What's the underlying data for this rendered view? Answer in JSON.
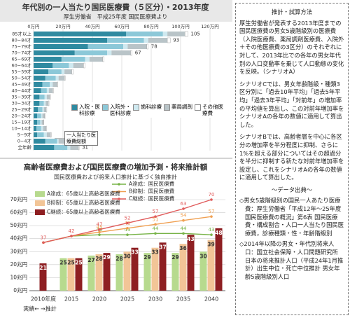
{
  "chart_data": [
    {
      "type": "hbar_stacked",
      "title": "年代別の一人当たり国民医療費（５区分）・2013年度",
      "subtitle": "厚生労働省　平成25年度 国民医療費より",
      "categories": [
        "85才以上",
        "80−84才",
        "75−79才",
        "70−74才",
        "65−69才",
        "60−64才",
        "55−59才",
        "50−54才",
        "45−49才",
        "40−44才",
        "35−39才",
        "30−34才",
        "25−29才",
        "20−24才",
        "15−19才",
        "10−14才",
        "5−9才",
        "0−4才",
        "全年齢"
      ],
      "series": [
        {
          "name": "入院・医科診療",
          "color": "#2f8aa0",
          "values": [
            63,
            50,
            37,
            28,
            19,
            13,
            10,
            8,
            6,
            5,
            4,
            4,
            3,
            2.5,
            2.5,
            2,
            2.5,
            8,
            14
          ]
        },
        {
          "name": "入院外・医科診療",
          "color": "#8cc8d8",
          "values": [
            25,
            25,
            24,
            22,
            16,
            11,
            9,
            7,
            5,
            4,
            3.5,
            3,
            3,
            2.5,
            2,
            3,
            4.5,
            8,
            9
          ]
        },
        {
          "name": "歯科診療",
          "color": "#cfe9f0",
          "values": [
            3,
            3,
            3,
            3,
            3,
            3,
            2,
            2,
            2,
            1.5,
            1.5,
            1.2,
            1,
            1,
            1,
            1.5,
            2,
            1,
            2
          ]
        },
        {
          "name": "薬局調剤",
          "color": "#b9c4c8",
          "values": [
            12,
            13,
            13,
            13,
            9,
            7,
            5,
            4,
            3,
            2.5,
            2,
            1.8,
            1.5,
            1.5,
            1.2,
            2,
            2.5,
            4,
            5.5
          ]
        },
        {
          "name": "その他医療費",
          "color": "#ffffff",
          "values": [
            2,
            2,
            1,
            1,
            1,
            1,
            1,
            0.5,
            0.5,
            0.5,
            0.5,
            0.5,
            0.5,
            0.5,
            0.3,
            0.3,
            0.5,
            1.5,
            0.5
          ]
        }
      ],
      "totals": [
        105,
        93,
        78,
        67,
        null,
        null,
        null,
        null,
        null,
        null,
        null,
        null,
        null,
        null,
        null,
        null,
        null,
        null,
        31
      ],
      "annotation": "一人当たり医療費総額",
      "xlim": [
        0,
        120
      ],
      "xticks": [
        {
          "value": 0,
          "label": "0万円"
        },
        {
          "value": 20,
          "label": "20万円"
        },
        {
          "value": 40,
          "label": "40万円"
        },
        {
          "value": 60,
          "label": "60万円"
        },
        {
          "value": 80,
          "label": "80万円"
        },
        {
          "value": 100,
          "label": "100万円"
        },
        {
          "value": 120,
          "label": "120万円"
        }
      ],
      "grid": true
    },
    {
      "type": "bar_line",
      "title": "高齢者医療費および国民医療費の増加予測・将来推計額",
      "subtitle": "国民医療費および将来人口推計に基づく独自推計",
      "categories": [
        "2010年度",
        "2015",
        "2020",
        "2025",
        "2030",
        "2035",
        "2040"
      ],
      "annotations": [
        "実績←",
        "→推計"
      ],
      "bar_series": [
        {
          "name": "A達成：65歳以上高齢者医療費",
          "color": "#b7da8e",
          "values": [
            null,
            25,
            27,
            28,
            29,
            29,
            30
          ]
        },
        {
          "name": "B抑制：65歳以上高齢者医療費",
          "color": "#f2c597",
          "values": [
            null,
            25,
            28,
            30,
            33,
            36,
            39
          ]
        },
        {
          "name": "C継続：65歳以上高齢者医療費",
          "color": "#8e1f22",
          "values": [
            21,
            25,
            29,
            33,
            37,
            43,
            48
          ]
        }
      ],
      "line_series": [
        {
          "name": "A達成：国民医療費",
          "color": "#77b347",
          "values": [
            37,
            42,
            43,
            43,
            44,
            44,
            43
          ]
        },
        {
          "name": "B抑制：国民医療費",
          "color": "#f0a052",
          "values": [
            37,
            42,
            45,
            48,
            51,
            54,
            57
          ]
        },
        {
          "name": "C継続：国民医療費",
          "color": "#e05a5a",
          "values": [
            37,
            42,
            47,
            52,
            57,
            63,
            70
          ]
        }
      ],
      "ylim": [
        0,
        70
      ],
      "yticks": [
        {
          "value": 0,
          "label": "0兆円"
        },
        {
          "value": 10,
          "label": "10兆円"
        },
        {
          "value": 20,
          "label": "20兆円"
        },
        {
          "value": 30,
          "label": "30兆円"
        },
        {
          "value": 40,
          "label": "40兆円"
        },
        {
          "value": 50,
          "label": "50兆円"
        },
        {
          "value": 60,
          "label": "60兆円"
        },
        {
          "value": 70,
          "label": "70兆円"
        }
      ],
      "grid": true
    }
  ],
  "side_panel": {
    "title": "推計・試算方法",
    "paragraphs": [
      "厚生労働省が発表する2013年度までの国民医療費の男女5歳階級別の医療費（入院医療費、薬局調剤医療費、入院外＋その他医療費の3区分）のそれぞれに対して、2013年比での各年の男女年代別の人口変動率を乗じて人口動態の変化を反映。（シナリオA）",
      "シナリオCでは、男女年齢階級・種類3区分別に「過去10年平均」「過去5年平均」「過去3年平均」「対前年」の増加率の平均値を算出し、この対前年増加率をシナリオAの各年の数値に適用して算出した。",
      "シナリオBでは、高齢者層を中心に各区分の増加率を半分程度に抑制、さらに1%を超える部分についてはその超過分を半分に抑制する新たな対前年増加率を設定し、これをシナリオAの各年の数値に適用して算出した。"
    ],
    "source_title": "～データ出典～",
    "sources": [
      "◇男女5歳階級別の国民一人あたり医療費：厚生労働省「平成12年〜25年度国民医療費の概況」第6表 国民医療費・構成割合・人口一人当たり国民医療費，診療種類・性・年齢階級別",
      "◇2014年以降の男女・年代別将来人口：国立社会保障・人口問題研究所 日本の将来推計人口（平成24年1月推計）出生中位・死亡中位推計 男女年齢5歳階級別人口"
    ]
  }
}
